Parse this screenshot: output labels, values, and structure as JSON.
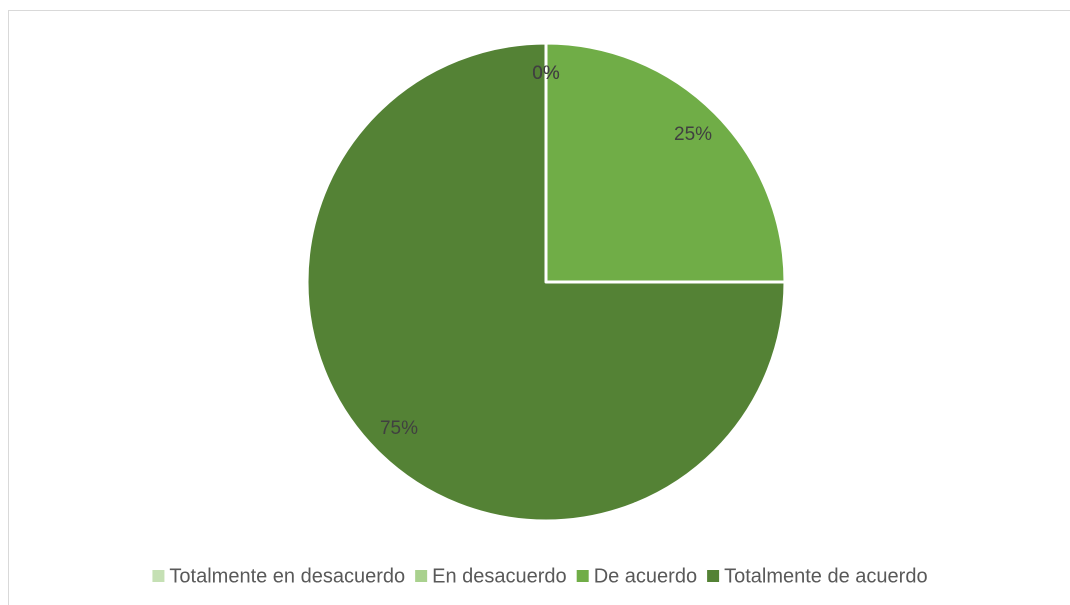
{
  "chart_data": {
    "type": "pie",
    "categories": [
      "Totalmente en desacuerdo",
      "En desacuerdo",
      "De acuerdo",
      "Totalmente de acuerdo"
    ],
    "values": [
      0,
      0,
      25,
      75
    ],
    "value_labels": [
      "0%",
      "0%",
      "25%",
      "75%"
    ],
    "colors": [
      "#c5e0b4",
      "#a9d18e",
      "#70ad47",
      "#548235"
    ],
    "legend": "bottom"
  }
}
